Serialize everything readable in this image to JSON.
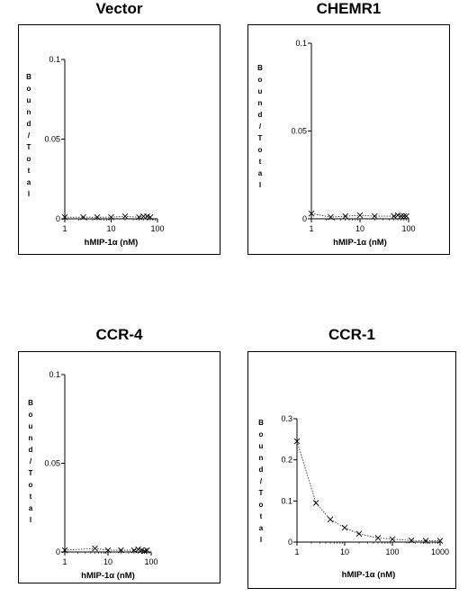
{
  "chart_data": [
    {
      "type": "line",
      "title": "Vector",
      "xlabel": "hMIP-1α (nM)",
      "ylabel": "Bound/Total",
      "xscale": "log",
      "xlim": [
        1,
        100
      ],
      "ylim": [
        0,
        0.1
      ],
      "xticks": [
        "1",
        "10",
        "100"
      ],
      "yticks": [
        "0",
        "0.05",
        "0.1"
      ],
      "x": [
        1,
        2.5,
        5,
        10,
        20,
        40,
        50,
        60,
        70
      ],
      "y": [
        0.001,
        0.001,
        0.001,
        0.001,
        0.0015,
        0.001,
        0.0015,
        0.0015,
        0.001
      ]
    },
    {
      "type": "line",
      "title": "CHEMR1",
      "xlabel": "hMIP-1α (nM)",
      "ylabel": "Bound/Total",
      "xscale": "log",
      "xlim": [
        1,
        100
      ],
      "ylim": [
        0,
        0.1
      ],
      "xticks": [
        "1",
        "10",
        "100"
      ],
      "yticks": [
        "0",
        "0.05",
        "0.1"
      ],
      "x": [
        1,
        2.5,
        5,
        10,
        20,
        50,
        60,
        70,
        80,
        90
      ],
      "y": [
        0.003,
        0.001,
        0.0015,
        0.002,
        0.0015,
        0.0015,
        0.002,
        0.0015,
        0.0015,
        0.0015
      ]
    },
    {
      "type": "line",
      "title": "CCR-4",
      "xlabel": "hMIP-1α (nM)",
      "ylabel": "Bound/Total",
      "xscale": "log",
      "xlim": [
        1,
        100
      ],
      "ylim": [
        0,
        0.1
      ],
      "xticks": [
        "1",
        "10",
        "100"
      ],
      "yticks": [
        "0",
        "0.05",
        "0.1"
      ],
      "x": [
        1,
        5,
        10,
        20,
        40,
        50,
        60,
        70,
        80
      ],
      "y": [
        0.001,
        0.002,
        0.001,
        0.001,
        0.001,
        0.0015,
        0.001,
        0.0005,
        0.001
      ]
    },
    {
      "type": "line",
      "title": "CCR-1",
      "xlabel": "hMIP-1α (nM)",
      "ylabel": "Bound/Total",
      "xscale": "log",
      "xlim": [
        1,
        1000
      ],
      "ylim": [
        0,
        0.3
      ],
      "xticks": [
        "1",
        "10",
        "100",
        "1000"
      ],
      "yticks": [
        "0",
        "0.1",
        "0.2",
        "0.3"
      ],
      "x": [
        1,
        2.5,
        5,
        10,
        20,
        50,
        100,
        250,
        500,
        1000
      ],
      "y": [
        0.245,
        0.095,
        0.055,
        0.035,
        0.02,
        0.01,
        0.007,
        0.004,
        0.003,
        0.003
      ]
    }
  ]
}
